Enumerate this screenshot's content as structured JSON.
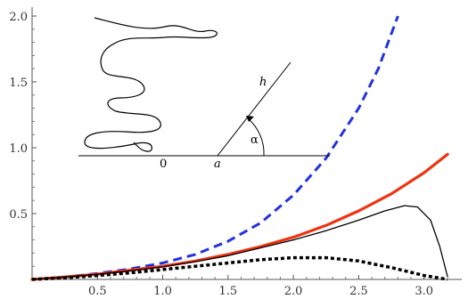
{
  "chart_data": {
    "type": "line",
    "title": "",
    "xlabel": "",
    "ylabel": "",
    "xlim": [
      0,
      3.2
    ],
    "ylim": [
      0,
      2.05
    ],
    "x_ticks": [
      0.5,
      1.0,
      1.5,
      2.0,
      2.5,
      3.0
    ],
    "x_tick_labels": [
      "0.5",
      "1.0",
      "1.5",
      "2.0",
      "2.5",
      "3.0"
    ],
    "y_ticks": [
      0.5,
      1.0,
      1.5,
      2.0
    ],
    "y_tick_labels": [
      "0.5",
      "1.0",
      "1.5",
      "2.0"
    ],
    "grid": false,
    "series": [
      {
        "color": "#2233dd",
        "style": "dashed",
        "x": [
          0,
          0.25,
          0.5,
          0.75,
          1.0,
          1.25,
          1.5,
          1.75,
          2.0,
          2.25,
          2.5,
          2.65,
          2.8
        ],
        "y": [
          0,
          0.018,
          0.045,
          0.08,
          0.125,
          0.19,
          0.29,
          0.43,
          0.64,
          0.92,
          1.3,
          1.6,
          2.0
        ]
      },
      {
        "color": "#ee3311",
        "style": "solid-thick",
        "x": [
          0,
          0.25,
          0.5,
          0.75,
          1.0,
          1.25,
          1.5,
          1.75,
          2.0,
          2.25,
          2.5,
          2.75,
          3.0,
          3.18
        ],
        "y": [
          0,
          0.018,
          0.04,
          0.07,
          0.1,
          0.14,
          0.19,
          0.25,
          0.32,
          0.41,
          0.52,
          0.65,
          0.81,
          0.95
        ]
      },
      {
        "color": "#000000",
        "style": "solid-thin",
        "x": [
          0,
          0.25,
          0.5,
          0.75,
          1.0,
          1.25,
          1.5,
          1.75,
          2.0,
          2.25,
          2.5,
          2.7,
          2.85,
          2.95,
          3.05,
          3.12,
          3.18
        ],
        "y": [
          0,
          0.018,
          0.04,
          0.065,
          0.095,
          0.135,
          0.18,
          0.24,
          0.3,
          0.37,
          0.45,
          0.52,
          0.56,
          0.55,
          0.45,
          0.25,
          0.02
        ]
      },
      {
        "color": "#000000",
        "style": "dotted-thick",
        "x": [
          0,
          0.25,
          0.5,
          0.75,
          1.0,
          1.25,
          1.5,
          1.75,
          2.0,
          2.25,
          2.5,
          2.75,
          3.0,
          3.18
        ],
        "y": [
          0,
          0.012,
          0.03,
          0.05,
          0.075,
          0.1,
          0.125,
          0.15,
          0.165,
          0.165,
          0.14,
          0.09,
          0.03,
          0
        ]
      }
    ]
  },
  "inset": {
    "label_zero": "0",
    "label_a": "a",
    "label_h": "h",
    "label_alpha": "α"
  }
}
